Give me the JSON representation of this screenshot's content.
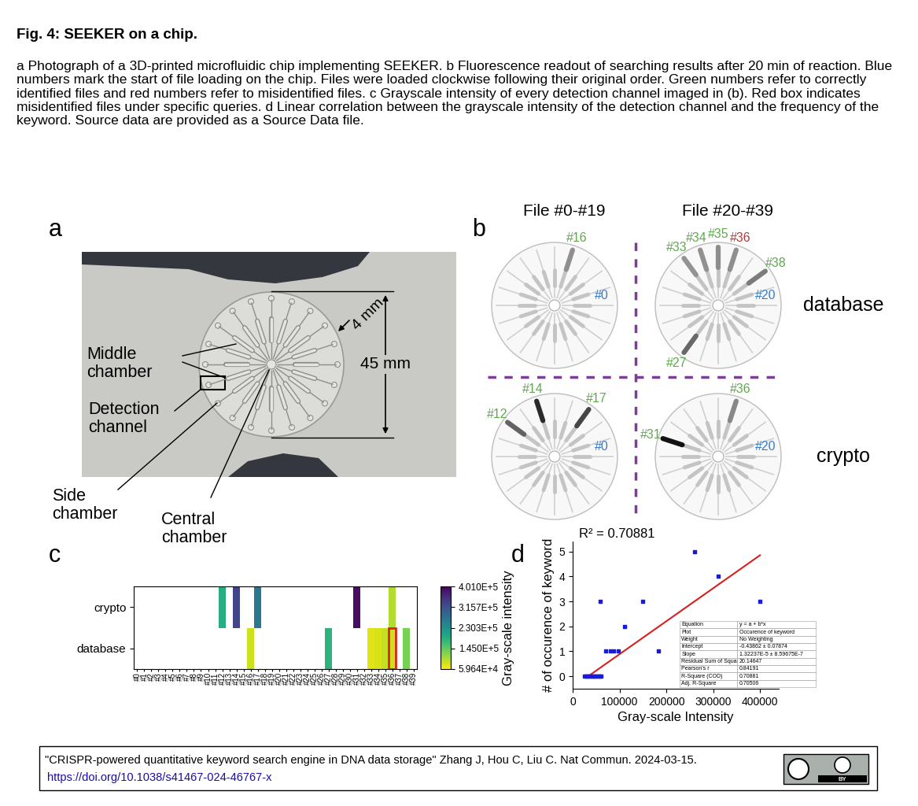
{
  "figure": {
    "title": "Fig. 4: SEEKER on a chip.",
    "caption": "a Photograph of a 3D-printed microfluidic chip implementing SEEKER. b Fluorescence readout of searching results after 20 min of reaction. Blue numbers mark the start of file loading on the chip. Files were loaded clockwise following their original order. Green numbers refer to correctly identified files and red numbers refer to misidentified files. c Grayscale intensity of every detection channel imaged in (b). Red box indicates misidentified files under specific queries. d Linear correlation between the grayscale intensity of the detection channel and the frequency of the keyword. Source data are provided as a Source Data file.",
    "panel_letters": [
      "a",
      "b",
      "c",
      "d"
    ]
  },
  "panel_a": {
    "labels": [
      "Middle\nchamber",
      "Detection\nchannel",
      "Side\nchamber",
      "Central\nchamber"
    ],
    "dimensions": [
      "4 mm",
      "45 mm"
    ]
  },
  "panel_b": {
    "columns": [
      "File #0-#19",
      "File #20-#39"
    ],
    "rows": [
      "database",
      "crypto"
    ],
    "chips": [
      {
        "row": "database",
        "column": "File #0-#19",
        "labels": [
          {
            "text": "#0",
            "kind": "start",
            "color": "#3b7dc4"
          },
          {
            "text": "#16",
            "kind": "correct",
            "color": "#5fa84e"
          }
        ]
      },
      {
        "row": "database",
        "column": "File #20-#39",
        "labels": [
          {
            "text": "#20",
            "kind": "start",
            "color": "#3b7dc4"
          },
          {
            "text": "#27",
            "kind": "correct",
            "color": "#5fa84e"
          },
          {
            "text": "#33",
            "kind": "correct",
            "color": "#5fa84e"
          },
          {
            "text": "#34",
            "kind": "correct",
            "color": "#5fa84e"
          },
          {
            "text": "#35",
            "kind": "correct",
            "color": "#5fa84e"
          },
          {
            "text": "#36",
            "kind": "misidentified",
            "color": "#b5383b"
          },
          {
            "text": "#38",
            "kind": "correct",
            "color": "#5fa84e"
          }
        ]
      },
      {
        "row": "crypto",
        "column": "File #0-#19",
        "labels": [
          {
            "text": "#0",
            "kind": "start",
            "color": "#3b7dc4"
          },
          {
            "text": "#12",
            "kind": "correct",
            "color": "#5fa84e"
          },
          {
            "text": "#14",
            "kind": "correct",
            "color": "#5fa84e"
          },
          {
            "text": "#17",
            "kind": "correct",
            "color": "#5fa84e"
          }
        ]
      },
      {
        "row": "crypto",
        "column": "File #20-#39",
        "labels": [
          {
            "text": "#20",
            "kind": "start",
            "color": "#3b7dc4"
          },
          {
            "text": "#31",
            "kind": "correct",
            "color": "#5fa84e"
          },
          {
            "text": "#36",
            "kind": "correct",
            "color": "#5fa84e"
          }
        ]
      }
    ]
  },
  "chart_data": [
    {
      "type": "heatmap",
      "categories": [
        "#0",
        "#1",
        "#2",
        "#3",
        "#4",
        "#5",
        "#6",
        "#7",
        "#8",
        "#9",
        "#10",
        "#11",
        "#12",
        "#13",
        "#14",
        "#15",
        "#16",
        "#17",
        "#18",
        "#19",
        "#20",
        "#21",
        "#22",
        "#23",
        "#24",
        "#25",
        "#26",
        "#27",
        "#28",
        "#29",
        "#30",
        "#31",
        "#32",
        "#33",
        "#34",
        "#35",
        "#36",
        "#37",
        "#38",
        "#39"
      ],
      "rows": [
        "crypto",
        "database"
      ],
      "cells": [
        [
          null,
          null,
          null,
          null,
          null,
          null,
          null,
          null,
          null,
          null,
          null,
          null,
          190000,
          null,
          330000,
          null,
          null,
          265000,
          null,
          null,
          null,
          null,
          null,
          null,
          null,
          null,
          null,
          null,
          null,
          null,
          null,
          390000,
          null,
          null,
          null,
          null,
          100000,
          null,
          null,
          null
        ],
        [
          null,
          null,
          null,
          null,
          null,
          null,
          null,
          null,
          null,
          null,
          null,
          null,
          null,
          null,
          null,
          null,
          85000,
          null,
          null,
          null,
          null,
          null,
          null,
          null,
          null,
          null,
          null,
          180000,
          null,
          null,
          null,
          null,
          null,
          75000,
          80000,
          90000,
          85000,
          null,
          130000,
          null
        ]
      ],
      "colorbar": {
        "label": "Gray-scale intensity",
        "range": [
          59640,
          401000
        ],
        "ticks": [
          {
            "value": 59640,
            "label": "5.964E+4"
          },
          {
            "value": 145000,
            "label": "1.450E+5"
          },
          {
            "value": 230300,
            "label": "2.303E+5"
          },
          {
            "value": 315700,
            "label": "3.157E+5"
          },
          {
            "value": 401000,
            "label": "4.010E+5"
          }
        ]
      },
      "highlight": [
        {
          "row": "database",
          "category": "#36",
          "color": "#e0201b"
        }
      ]
    },
    {
      "type": "scatter",
      "annotation": "R² = 0.70881",
      "x_label": "Gray-scale Intensity",
      "y_label": "# of occurence of keyword",
      "x": [
        25000,
        28000,
        31000,
        34000,
        37000,
        40000,
        43000,
        46000,
        49000,
        52000,
        55000,
        58000,
        61000,
        58000,
        70000,
        80000,
        88000,
        98000,
        110000,
        150000,
        183000,
        260000,
        310000,
        400000
      ],
      "values": [
        0,
        0,
        0,
        0,
        0,
        0,
        0,
        0,
        0,
        0,
        0,
        0,
        0,
        3,
        1,
        1,
        1,
        1,
        2,
        3,
        1,
        5,
        4,
        3
      ],
      "color": "#1a1adb",
      "marker": "square",
      "xlim": [
        0,
        440000
      ],
      "ylim": [
        -0.5,
        5.4
      ],
      "xticks": [
        0,
        100000,
        200000,
        300000,
        400000
      ],
      "yticks": [
        0,
        1,
        2,
        3,
        4,
        5
      ],
      "fit": {
        "intercept": -0.43862,
        "slope": 1.32237e-05,
        "x_range": [
          30000,
          400000
        ],
        "color": "#d62020"
      },
      "stats_table": [
        [
          "Equation",
          "y = a + b*x"
        ],
        [
          "Plot",
          "Occurence of keyword"
        ],
        [
          "Weight",
          "No Weighting"
        ],
        [
          "Intercept",
          "-0.43862 ± 0.07874"
        ],
        [
          "Slope",
          "1.32237E-5 ± 8.59675E-7"
        ],
        [
          "Residual Sum of Squares",
          "20.14647"
        ],
        [
          "Pearson's r",
          "0.84191"
        ],
        [
          "R-Square (COD)",
          "0.70881"
        ],
        [
          "Adj. R-Square",
          "0.70506"
        ]
      ]
    }
  ],
  "citation": {
    "text": "\"CRISPR-powered quantitative keyword search engine in DNA data storage\" Zhang J, Hou C, Liu C. Nat Commun. 2024-03-15.",
    "url": "https://doi.org/10.1038/s41467-024-46767-x",
    "license_badge": "BY"
  }
}
